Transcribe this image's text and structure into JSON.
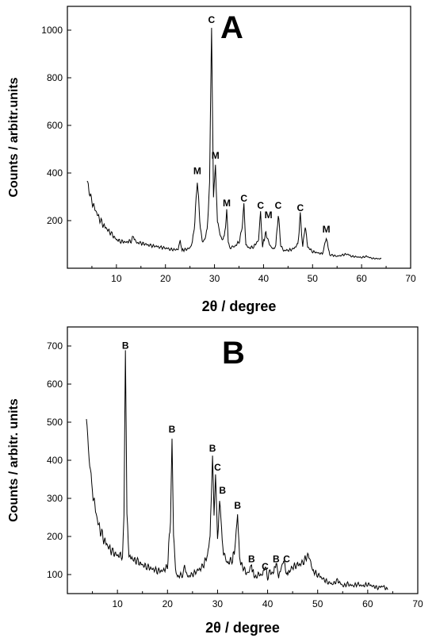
{
  "chart_data": [
    {
      "type": "line",
      "panel_label": "A",
      "xlabel": "2θ / degree",
      "ylabel": "Counts / arbitr.units",
      "xlim": [
        0,
        70
      ],
      "ylim": [
        0,
        1100
      ],
      "xticks": [
        10,
        20,
        30,
        40,
        50,
        60,
        70
      ],
      "yticks": [
        200,
        400,
        600,
        800,
        1000
      ],
      "grid": false,
      "series": [
        {
          "x": [
            4,
            4.5,
            5,
            6,
            7,
            8,
            9,
            10,
            11,
            12,
            13,
            13.5,
            14,
            15,
            16,
            17,
            18,
            19,
            20,
            21,
            22,
            22.6,
            23,
            23.4,
            24,
            25,
            25.5,
            26,
            26.5,
            27,
            27.5,
            28,
            28.5,
            29,
            29.4,
            29.8,
            30.2,
            30.6,
            31,
            31.5,
            32,
            32.5,
            32.8,
            33.2,
            34,
            35,
            35.5,
            36,
            36.4,
            37,
            38,
            39,
            39.4,
            39.8,
            40.5,
            41,
            41.5,
            42,
            42.5,
            43,
            43.5,
            44,
            45,
            46,
            47,
            47.5,
            48,
            48.5,
            49,
            50,
            51,
            52,
            52.8,
            53.5,
            54,
            55,
            56,
            57,
            58,
            59,
            60,
            61,
            62,
            63,
            64
          ],
          "values": [
            370,
            320,
            280,
            230,
            190,
            165,
            145,
            120,
            112,
            110,
            115,
            135,
            108,
            105,
            100,
            95,
            92,
            88,
            85,
            80,
            78,
            80,
            120,
            75,
            78,
            85,
            110,
            200,
            375,
            200,
            110,
            120,
            160,
            350,
            1010,
            300,
            440,
            200,
            150,
            120,
            130,
            240,
            110,
            85,
            90,
            110,
            150,
            260,
            100,
            85,
            90,
            120,
            230,
            95,
            150,
            110,
            90,
            80,
            95,
            230,
            100,
            75,
            75,
            80,
            100,
            220,
            90,
            180,
            90,
            70,
            65,
            60,
            130,
            55,
            55,
            50,
            55,
            60,
            50,
            48,
            45,
            50,
            42,
            40,
            40
          ]
        }
      ],
      "annotations": [
        {
          "text": "C",
          "x": 29.4,
          "y": 1010
        },
        {
          "text": "M",
          "x": 26.5,
          "y": 375
        },
        {
          "text": "M",
          "x": 30.2,
          "y": 440
        },
        {
          "text": "M",
          "x": 32.5,
          "y": 240
        },
        {
          "text": "C",
          "x": 36.0,
          "y": 260
        },
        {
          "text": "C",
          "x": 39.4,
          "y": 230
        },
        {
          "text": "M",
          "x": 41.0,
          "y": 190
        },
        {
          "text": "C",
          "x": 43.0,
          "y": 230
        },
        {
          "text": "C",
          "x": 47.5,
          "y": 220
        },
        {
          "text": "M",
          "x": 52.8,
          "y": 130
        }
      ]
    },
    {
      "type": "line",
      "panel_label": "B",
      "xlabel": "2θ / degree",
      "ylabel": "Counts / arbitr. units",
      "xlim": [
        0,
        70
      ],
      "ylim": [
        50,
        750
      ],
      "xticks": [
        10,
        20,
        30,
        40,
        50,
        60,
        70
      ],
      "yticks": [
        100,
        200,
        300,
        400,
        500,
        600,
        700
      ],
      "grid": false,
      "series": [
        {
          "x": [
            3.8,
            4.2,
            5,
            6,
            7,
            8,
            9,
            10,
            11,
            11.3,
            11.6,
            11.9,
            12.3,
            13,
            14,
            15,
            16,
            17,
            18,
            19,
            20,
            20.6,
            20.9,
            21.2,
            21.6,
            22,
            23,
            23.4,
            24,
            25,
            26,
            27,
            28,
            28.5,
            29,
            29.3,
            29.6,
            30,
            30.4,
            30.8,
            31.2,
            32,
            33,
            33.6,
            34,
            34.4,
            35,
            36,
            36.8,
            37.5,
            38,
            39,
            39.5,
            40,
            40.5,
            41,
            41.7,
            42.2,
            42.8,
            43.2,
            43.8,
            44.5,
            45,
            46,
            47,
            48,
            48.5,
            49,
            50,
            51,
            52,
            53,
            54,
            55,
            56,
            57,
            58,
            59,
            60,
            61,
            62,
            63,
            64
          ],
          "values": [
            510,
            420,
            320,
            240,
            200,
            175,
            160,
            150,
            150,
            260,
            680,
            260,
            150,
            140,
            135,
            125,
            120,
            115,
            110,
            110,
            120,
            250,
            460,
            200,
            110,
            95,
            100,
            120,
            95,
            100,
            110,
            120,
            150,
            200,
            410,
            260,
            360,
            200,
            300,
            220,
            150,
            130,
            140,
            180,
            260,
            140,
            120,
            100,
            120,
            90,
            100,
            100,
            125,
            90,
            110,
            100,
            130,
            95,
            120,
            140,
            100,
            110,
            120,
            125,
            130,
            150,
            140,
            110,
            100,
            90,
            80,
            75,
            85,
            70,
            75,
            70,
            75,
            70,
            75,
            70,
            65,
            70,
            60
          ]
        }
      ],
      "annotations": [
        {
          "text": "B",
          "x": 11.6,
          "y": 680
        },
        {
          "text": "B",
          "x": 20.9,
          "y": 460
        },
        {
          "text": "B",
          "x": 29.0,
          "y": 410
        },
        {
          "text": "C",
          "x": 30.0,
          "y": 360
        },
        {
          "text": "B",
          "x": 31.0,
          "y": 300
        },
        {
          "text": "B",
          "x": 34.0,
          "y": 260
        },
        {
          "text": "B",
          "x": 36.8,
          "y": 120
        },
        {
          "text": "C",
          "x": 39.5,
          "y": 100
        },
        {
          "text": "B",
          "x": 41.7,
          "y": 120
        },
        {
          "text": "C",
          "x": 43.8,
          "y": 120
        }
      ]
    }
  ]
}
